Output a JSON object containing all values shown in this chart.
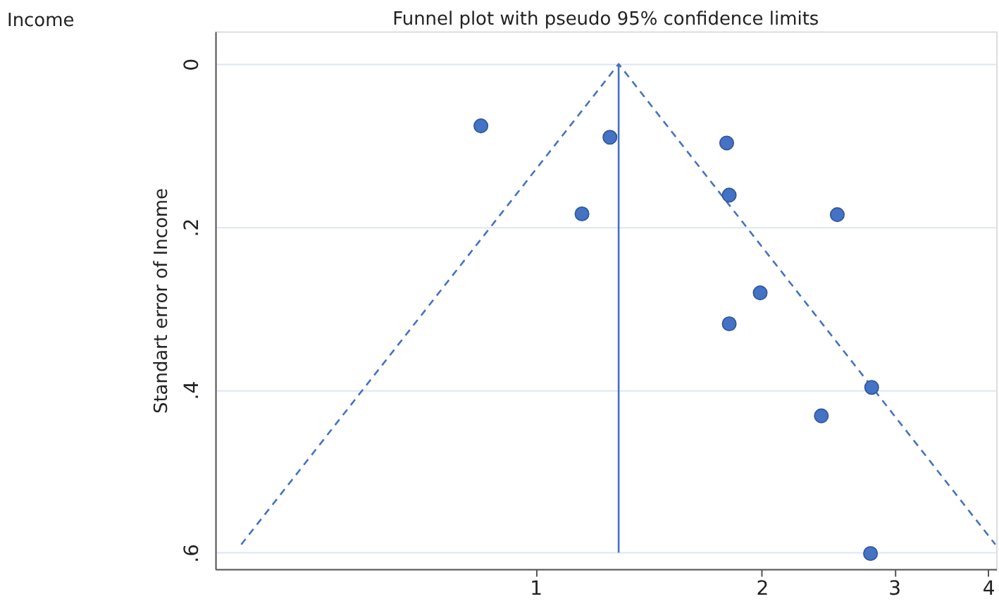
{
  "chart_data": {
    "type": "scatter",
    "title": "Funnel plot with pseudo 95% confidence limits",
    "ylabel": "Standart error of Income",
    "annotations": [
      "Income"
    ],
    "log": "x",
    "grid": "y",
    "xlim": [
      0.375,
      4.1
    ],
    "xticks": [
      1,
      2,
      3,
      4
    ],
    "ylim": [
      0.62,
      -0.04
    ],
    "yticks": [
      0,
      {
        "value": 0.2,
        "label": ".2"
      },
      {
        "value": 0.4,
        "label": ".4"
      },
      {
        "value": 0.6,
        "label": ".6"
      }
    ],
    "series": [
      {
        "type": "line",
        "color": "#4472c4",
        "line_style": "dashed",
        "marker": "none",
        "x": [
          0.406,
          1.29,
          4.09
        ],
        "values": [
          0.59,
          0,
          0.59
        ]
      },
      {
        "type": "line",
        "color": "#4472c4",
        "line_style": "solid",
        "marker": "none",
        "x": [
          1.29,
          1.29
        ],
        "values": [
          0,
          0.6
        ]
      },
      {
        "color": "#4472c4",
        "marker": "circle",
        "x": [
          0.846,
          1.256,
          1.153,
          1.796,
          1.81,
          2.52,
          1.99,
          1.81,
          2.8,
          2.4,
          2.79
        ],
        "values": [
          0.076,
          0.09,
          0.184,
          0.097,
          0.161,
          0.185,
          0.281,
          0.319,
          0.397,
          0.432,
          0.601
        ]
      }
    ]
  }
}
